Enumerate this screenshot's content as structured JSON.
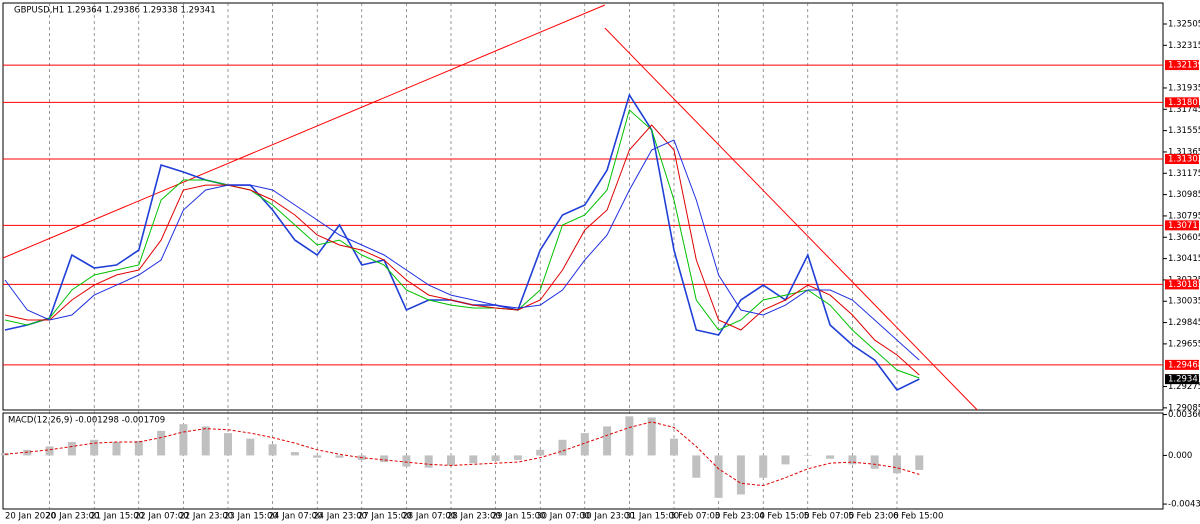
{
  "chart_data": [
    {
      "type": "line",
      "title": "GBPUSD,H1  1.29364 1.29386 1.29338 1.29341",
      "categories": [
        "20 Jan 2020",
        null,
        "20 Jan 23:00",
        null,
        "21 Jan 15:00",
        null,
        "22 Jan 07:00",
        null,
        "22 Jan 23:00",
        null,
        "23 Jan 15:00",
        null,
        "24 Jan 07:00",
        null,
        "24 Jan 23:00",
        null,
        "27 Jan 15:00",
        null,
        "28 Jan 07:00",
        null,
        "28 Jan 23:00",
        null,
        "29 Jan 15:00",
        null,
        "30 Jan 07:00",
        null,
        "30 Jan 23:00",
        null,
        "31 Jan 15:00",
        null,
        "3 Feb 07:00",
        null,
        "3 Feb 23:00",
        null,
        "4 Feb 15:00",
        null,
        "5 Feb 07:00",
        null,
        "5 Feb 23:00",
        null,
        "6 Feb 15:00",
        null
      ],
      "series": [
        {
          "color": "#1f3fd6",
          "values": [
            1.29779,
            1.29823,
            1.29885,
            1.30447,
            1.30331,
            1.30358,
            1.30491,
            1.31249,
            1.31186,
            1.31115,
            1.3107,
            1.3107,
            1.30848,
            1.3058,
            1.30447,
            1.30714,
            1.30358,
            1.30402,
            1.29957,
            1.30046,
            1.30046,
            1.30001,
            1.30001,
            1.29957,
            1.30491,
            1.30803,
            1.30892,
            1.31204,
            1.31872,
            1.31561,
            1.30491,
            1.29779,
            1.29734,
            1.30046,
            1.30179,
            1.30046,
            1.30447,
            1.29823,
            1.29645,
            1.29511,
            1.29244,
            1.29341
          ]
        },
        {
          "color": "#00c000",
          "values": [
            1.29868,
            1.29823,
            1.29885,
            1.30135,
            1.30269,
            1.30313,
            1.30358,
            1.30937,
            1.31115,
            1.31115,
            1.3107,
            1.31026,
            1.30892,
            1.30714,
            1.30536,
            1.3058,
            1.30447,
            1.30358,
            1.30135,
            1.30046,
            1.30001,
            1.29975,
            1.29975,
            1.29957,
            1.30135,
            1.30714,
            1.30803,
            1.31026,
            1.31739,
            1.31561,
            1.30937,
            1.30046,
            1.29779,
            1.29868,
            1.30046,
            1.3009,
            1.30135,
            1.30001,
            1.29779,
            1.296,
            1.29422,
            1.29351
          ]
        },
        {
          "color": "#e00000",
          "values": [
            1.29912,
            1.29868,
            1.29868,
            1.30046,
            1.30179,
            1.30269,
            1.30313,
            1.3058,
            1.31026,
            1.3107,
            1.3107,
            1.31026,
            1.30937,
            1.30803,
            1.30625,
            1.30536,
            1.30491,
            1.30402,
            1.30224,
            1.3009,
            1.30046,
            1.30001,
            1.29975,
            1.29957,
            1.30046,
            1.30313,
            1.3067,
            1.30848,
            1.31382,
            1.31605,
            1.31382,
            1.30402,
            1.29868,
            1.29779,
            1.29957,
            1.30046,
            1.30179,
            1.3009,
            1.29912,
            1.29689,
            1.29556,
            1.29378
          ]
        },
        {
          "color": "#2030e0",
          "values": [
            1.30224,
            1.29957,
            1.29868,
            1.29912,
            1.3009,
            1.30179,
            1.30269,
            1.30402,
            1.30848,
            1.31026,
            1.3107,
            1.3107,
            1.31026,
            1.30892,
            1.30759,
            1.30625,
            1.30536,
            1.30447,
            1.30313,
            1.30179,
            1.3009,
            1.30046,
            1.30001,
            1.29975,
            1.30001,
            1.30135,
            1.30402,
            1.30625,
            1.31026,
            1.31382,
            1.31471,
            1.30937,
            1.30269,
            1.29957,
            1.29912,
            1.30001,
            1.30135,
            1.30135,
            1.30046,
            1.29868,
            1.29689,
            1.29511
          ]
        }
      ],
      "ylim": [
        1.29066,
        1.32692
      ],
      "yticks": [
        1.32505,
        1.32315,
        1.31935,
        1.31745,
        1.31555,
        1.31365,
        1.31175,
        1.30985,
        1.30795,
        1.30605,
        1.30415,
        1.30225,
        1.30035,
        1.29845,
        1.29655,
        1.29275,
        1.29085
      ],
      "levels": [
        1.32139,
        1.31807,
        1.31302,
        1.30711,
        1.30185,
        1.29468
      ],
      "level_color": "#ff0000",
      "last_price": 1.29341,
      "trendlines": [
        {
          "x": [
            -0.09,
            26.9
          ],
          "y": [
            1.3042,
            1.32674
          ]
        },
        {
          "x": [
            26.9,
            43.6
          ],
          "y": [
            1.32469,
            1.29066
          ]
        }
      ],
      "grid": true
    },
    {
      "type": "macd",
      "title": "MACD(12,26,9) -0.001298 -0.001709",
      "series": [
        {
          "color": "#c0c0c0",
          "values": [
            0.0002,
            0.0005,
            0.0008,
            0.0012,
            0.0014,
            0.0012,
            0.0013,
            0.0022,
            0.0028,
            0.0026,
            0.002,
            0.0015,
            0.001,
            0.0003,
            -0.0002,
            -0.0002,
            -0.0004,
            -0.0006,
            -0.001,
            -0.0011,
            -0.0009,
            -0.0007,
            -0.0005,
            -0.0004,
            0.0005,
            0.0014,
            0.002,
            0.0026,
            0.0035,
            0.0034,
            0.0015,
            -0.002,
            -0.0038,
            -0.0035,
            -0.002,
            -0.0008,
            0,
            -0.0003,
            -0.0008,
            -0.0012,
            -0.0016,
            -0.0013
          ]
        },
        {
          "color": "#e00000",
          "values": [
            0.0001,
            0.0003,
            0.0005,
            0.0008,
            0.0011,
            0.0012,
            0.0012,
            0.0016,
            0.0021,
            0.0024,
            0.0023,
            0.002,
            0.0016,
            0.0011,
            0.0005,
            0.0001,
            -0.0002,
            -0.0004,
            -0.0006,
            -0.0008,
            -0.0009,
            -0.0008,
            -0.0007,
            -0.0006,
            -0.0002,
            0.0004,
            0.0011,
            0.0018,
            0.0025,
            0.003,
            0.0025,
            0.0008,
            -0.0012,
            -0.0025,
            -0.0027,
            -0.002,
            -0.0012,
            -0.0007,
            -0.0006,
            -0.0008,
            -0.0011,
            -0.0017
          ]
        }
      ],
      "ylim": [
        -0.0048,
        0.0038
      ],
      "yticks": [
        0.003662,
        {
          "value": 0,
          "label": "0.000"
        },
        -0.004358
      ]
    }
  ]
}
